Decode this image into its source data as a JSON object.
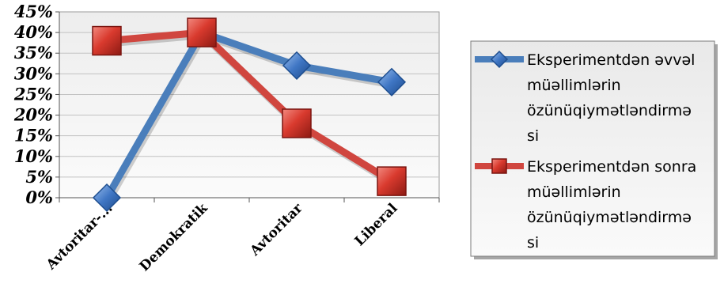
{
  "chart_data": {
    "type": "line",
    "categories": [
      "Avtoritar-...",
      "Demokratik",
      "Avtoritar",
      "Liberal"
    ],
    "series": [
      {
        "name": "Eksperimentdən əvvəl müəllimlərin özünüqiymətləndirməsi",
        "legend_lines": [
          "Eksperimentdən əvvəl",
          "müəllimlərin",
          "özünüqiymətləndirmə",
          "si"
        ],
        "values": [
          0,
          40,
          32,
          28
        ],
        "color": "#4a7ebb",
        "marker": "diamond"
      },
      {
        "name": "Eksperimentdən sonra müəllimlərin özünüqiymətləndirməsi",
        "legend_lines": [
          "Eksperimentdən sonra",
          "müəllimlərin",
          "özünüqiymətləndirmə",
          "si"
        ],
        "values": [
          38,
          40,
          18,
          4
        ],
        "color": "#d0463f",
        "marker": "square"
      }
    ],
    "y_ticks": [
      "0%",
      "5%",
      "10%",
      "15%",
      "20%",
      "25%",
      "30%",
      "35%",
      "40%",
      "45%"
    ],
    "ylim": [
      0,
      45
    ],
    "y_step": 5,
    "grid": true,
    "legend": "right"
  }
}
